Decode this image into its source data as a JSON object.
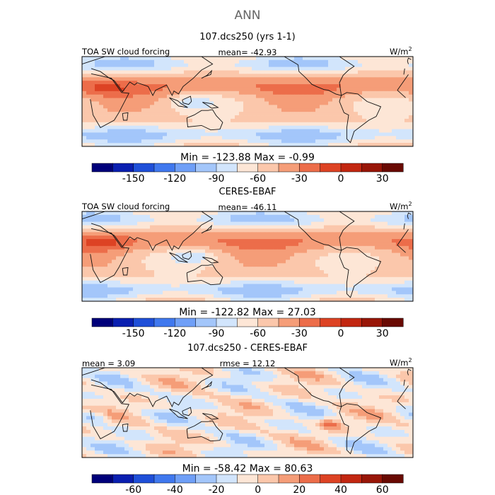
{
  "page_title": "ANN",
  "palette": {
    "bounds": [
      "#00007a",
      "#0a1fb0",
      "#1f4fd8",
      "#4078ee",
      "#6f9ff7",
      "#a3c6fa",
      "#d2e5fc",
      "#fde6d6",
      "#fbc7ab",
      "#f59d78",
      "#ec6d4a",
      "#dd4324",
      "#c22711",
      "#981608",
      "#690a03"
    ]
  },
  "chart_data": [
    {
      "type": "heatmap",
      "title": "107.dcs250 (yrs 1-1)",
      "left_label": "TOA SW cloud forcing",
      "center_label": "mean=  -42.93",
      "units": "W/m",
      "units_sup": "2",
      "stats": "Min = -123.88  Max =   -0.99",
      "colorbar_ticks": [
        "-150",
        "-120",
        "-90",
        "-60",
        "-30",
        "0",
        "30"
      ],
      "mean": -42.93,
      "min": -123.88,
      "max": -0.99
    },
    {
      "type": "heatmap",
      "title": "CERES-EBAF",
      "left_label": "TOA SW cloud forcing",
      "center_label": "mean=  -46.11",
      "units": "W/m",
      "units_sup": "2",
      "stats": "Min = -122.82  Max =   27.03",
      "colorbar_ticks": [
        "-150",
        "-120",
        "-90",
        "-60",
        "-30",
        "0",
        "30"
      ],
      "mean": -46.11,
      "min": -122.82,
      "max": 27.03
    },
    {
      "type": "heatmap",
      "title": "107.dcs250 - CERES-EBAF",
      "left_label": "mean =    3.09",
      "center_label": "rmse =   12.12",
      "units": "W/m",
      "units_sup": "2",
      "stats": "Min = -58.42  Max =   80.63",
      "colorbar_ticks": [
        "-60",
        "-40",
        "-20",
        "0",
        "20",
        "40",
        "60"
      ],
      "mean": 3.09,
      "rmse": 12.12,
      "min": -58.42,
      "max": 80.63
    }
  ]
}
